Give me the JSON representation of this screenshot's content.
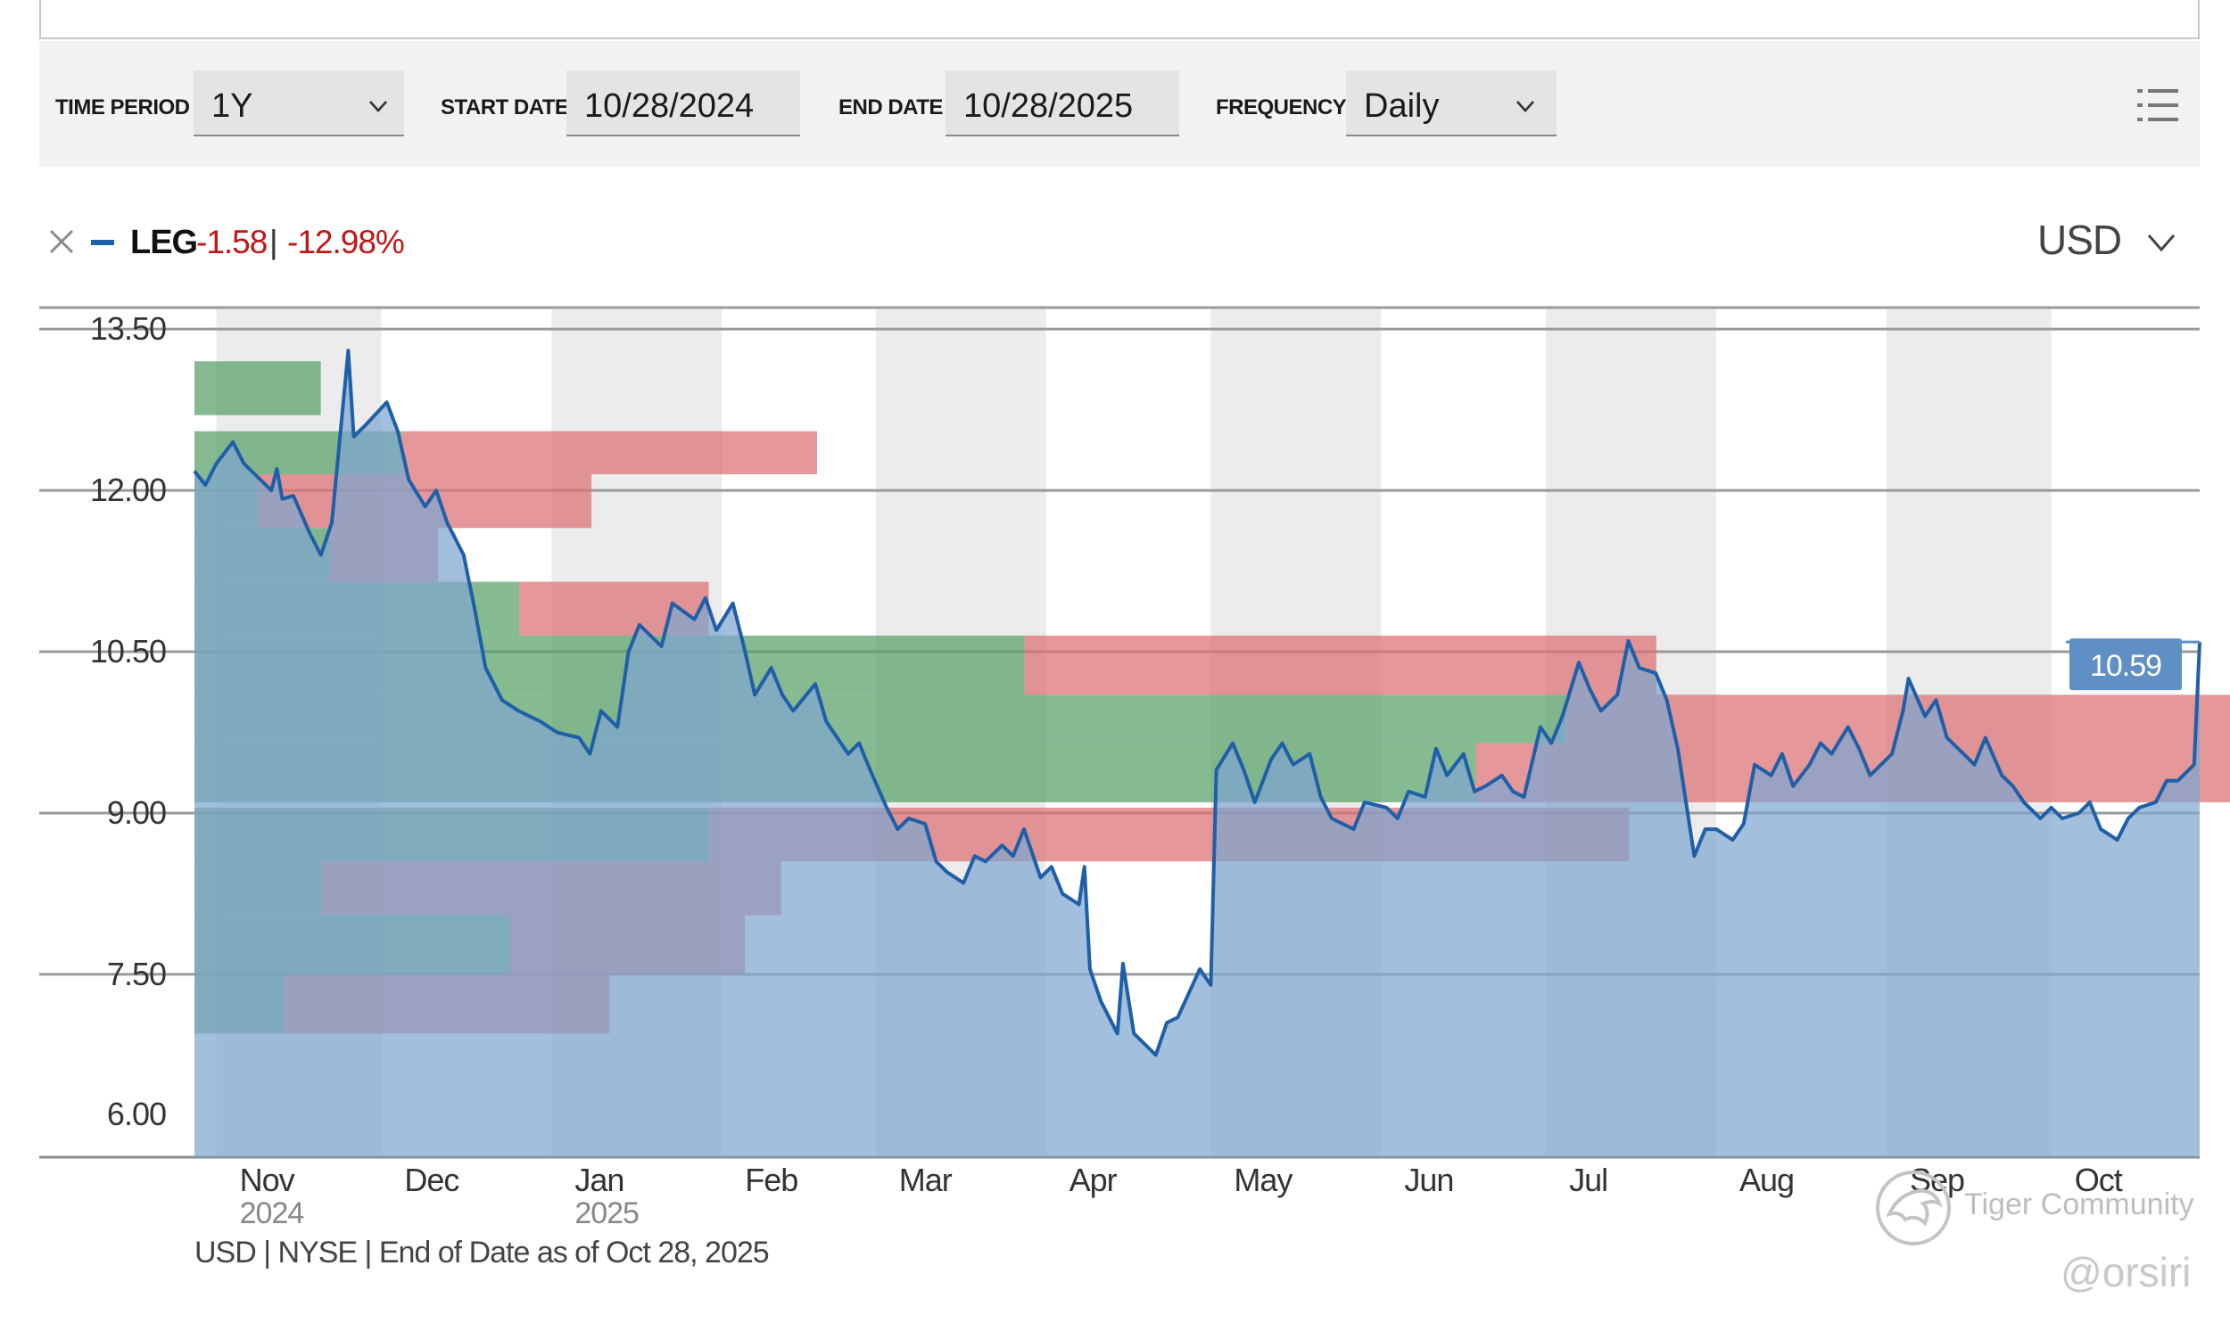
{
  "controls": {
    "time_period_label": "TIME PERIOD",
    "time_period_value": "1Y",
    "start_date_label": "START DATE",
    "start_date_value": "10/28/2024",
    "end_date_label": "END DATE",
    "end_date_value": "10/28/2025",
    "frequency_label": "FREQUENCY",
    "frequency_value": "Daily"
  },
  "legend": {
    "ticker": "LEG",
    "change_abs": "-1.58",
    "separator": "|",
    "change_pct": "-12.98%",
    "currency": "USD"
  },
  "footer": {
    "note": "USD | NYSE | End of Date as of Oct 28, 2025"
  },
  "watermark": {
    "text": "Tiger Community",
    "handle": "@orsiri"
  },
  "colors": {
    "line": "#1f5fa8",
    "area": "#7ea6d0",
    "volume_up": "#57a067",
    "volume_down": "#db6f72",
    "band": "#ececec",
    "negative_text": "#c0161a",
    "last_price_badge": "#5f8fc4"
  },
  "icons": [
    "close-icon",
    "chevron-down-icon",
    "list-view-icon"
  ],
  "chart_data": {
    "type": "area",
    "series": [
      {
        "name": "LEG"
      }
    ],
    "yticks": [
      "13.50",
      "12.00",
      "10.50",
      "9.00",
      "7.50",
      "6.00"
    ],
    "ylim": [
      5.8,
      13.7
    ],
    "grid": true,
    "months": [
      {
        "label": "Nov",
        "year": "2024"
      },
      {
        "label": "Dec",
        "year": ""
      },
      {
        "label": "Jan",
        "year": "2025"
      },
      {
        "label": "Feb",
        "year": ""
      },
      {
        "label": "Mar",
        "year": ""
      },
      {
        "label": "Apr",
        "year": ""
      },
      {
        "label": "May",
        "year": ""
      },
      {
        "label": "Jun",
        "year": ""
      },
      {
        "label": "Jul",
        "year": ""
      },
      {
        "label": "Aug",
        "year": ""
      },
      {
        "label": "Sep",
        "year": ""
      },
      {
        "label": "Oct",
        "year": ""
      }
    ],
    "last_price": "10.59",
    "points": [
      [
        "2024-10-28",
        12.18
      ],
      [
        "2024-10-30",
        12.05
      ],
      [
        "2024-11-01",
        12.25
      ],
      [
        "2024-11-04",
        12.45
      ],
      [
        "2024-11-06",
        12.25
      ],
      [
        "2024-11-08",
        12.15
      ],
      [
        "2024-11-11",
        12.0
      ],
      [
        "2024-11-12",
        12.2
      ],
      [
        "2024-11-13",
        11.92
      ],
      [
        "2024-11-15",
        11.95
      ],
      [
        "2024-11-18",
        11.6
      ],
      [
        "2024-11-20",
        11.4
      ],
      [
        "2024-11-22",
        11.7
      ],
      [
        "2024-11-25",
        13.3
      ],
      [
        "2024-11-26",
        12.5
      ],
      [
        "2024-11-28",
        12.6
      ],
      [
        "2024-12-02",
        12.82
      ],
      [
        "2024-12-04",
        12.55
      ],
      [
        "2024-12-06",
        12.1
      ],
      [
        "2024-12-09",
        11.85
      ],
      [
        "2024-12-11",
        12.0
      ],
      [
        "2024-12-13",
        11.7
      ],
      [
        "2024-12-16",
        11.4
      ],
      [
        "2024-12-18",
        10.9
      ],
      [
        "2024-12-20",
        10.35
      ],
      [
        "2024-12-23",
        10.05
      ],
      [
        "2024-12-26",
        9.95
      ],
      [
        "2024-12-30",
        9.85
      ],
      [
        "2025-01-02",
        9.75
      ],
      [
        "2025-01-06",
        9.7
      ],
      [
        "2025-01-08",
        9.55
      ],
      [
        "2025-01-10",
        9.95
      ],
      [
        "2025-01-13",
        9.8
      ],
      [
        "2025-01-15",
        10.5
      ],
      [
        "2025-01-17",
        10.75
      ],
      [
        "2025-01-21",
        10.55
      ],
      [
        "2025-01-23",
        10.95
      ],
      [
        "2025-01-27",
        10.8
      ],
      [
        "2025-01-29",
        11.0
      ],
      [
        "2025-01-31",
        10.7
      ],
      [
        "2025-02-03",
        10.95
      ],
      [
        "2025-02-05",
        10.55
      ],
      [
        "2025-02-07",
        10.1
      ],
      [
        "2025-02-10",
        10.35
      ],
      [
        "2025-02-12",
        10.1
      ],
      [
        "2025-02-14",
        9.95
      ],
      [
        "2025-02-18",
        10.2
      ],
      [
        "2025-02-20",
        9.85
      ],
      [
        "2025-02-24",
        9.55
      ],
      [
        "2025-02-26",
        9.65
      ],
      [
        "2025-02-28",
        9.4
      ],
      [
        "2025-03-03",
        9.05
      ],
      [
        "2025-03-05",
        8.85
      ],
      [
        "2025-03-07",
        8.95
      ],
      [
        "2025-03-10",
        8.9
      ],
      [
        "2025-03-12",
        8.55
      ],
      [
        "2025-03-14",
        8.45
      ],
      [
        "2025-03-17",
        8.35
      ],
      [
        "2025-03-19",
        8.6
      ],
      [
        "2025-03-21",
        8.55
      ],
      [
        "2025-03-24",
        8.7
      ],
      [
        "2025-03-26",
        8.6
      ],
      [
        "2025-03-28",
        8.85
      ],
      [
        "2025-03-31",
        8.4
      ],
      [
        "2025-04-02",
        8.5
      ],
      [
        "2025-04-04",
        8.25
      ],
      [
        "2025-04-07",
        8.15
      ],
      [
        "2025-04-08",
        8.5
      ],
      [
        "2025-04-09",
        7.55
      ],
      [
        "2025-04-11",
        7.25
      ],
      [
        "2025-04-14",
        6.95
      ],
      [
        "2025-04-15",
        7.6
      ],
      [
        "2025-04-17",
        6.95
      ],
      [
        "2025-04-21",
        6.75
      ],
      [
        "2025-04-23",
        7.05
      ],
      [
        "2025-04-25",
        7.1
      ],
      [
        "2025-04-29",
        7.55
      ],
      [
        "2025-05-01",
        7.4
      ],
      [
        "2025-05-02",
        9.4
      ],
      [
        "2025-05-05",
        9.65
      ],
      [
        "2025-05-07",
        9.4
      ],
      [
        "2025-05-09",
        9.1
      ],
      [
        "2025-05-12",
        9.5
      ],
      [
        "2025-05-14",
        9.65
      ],
      [
        "2025-05-16",
        9.45
      ],
      [
        "2025-05-19",
        9.55
      ],
      [
        "2025-05-21",
        9.15
      ],
      [
        "2025-05-23",
        8.95
      ],
      [
        "2025-05-27",
        8.85
      ],
      [
        "2025-05-29",
        9.1
      ],
      [
        "2025-06-02",
        9.05
      ],
      [
        "2025-06-04",
        8.95
      ],
      [
        "2025-06-06",
        9.2
      ],
      [
        "2025-06-09",
        9.15
      ],
      [
        "2025-06-11",
        9.6
      ],
      [
        "2025-06-13",
        9.35
      ],
      [
        "2025-06-16",
        9.55
      ],
      [
        "2025-06-18",
        9.2
      ],
      [
        "2025-06-20",
        9.25
      ],
      [
        "2025-06-23",
        9.35
      ],
      [
        "2025-06-25",
        9.2
      ],
      [
        "2025-06-27",
        9.15
      ],
      [
        "2025-06-30",
        9.8
      ],
      [
        "2025-07-02",
        9.65
      ],
      [
        "2025-07-04",
        9.9
      ],
      [
        "2025-07-07",
        10.4
      ],
      [
        "2025-07-09",
        10.15
      ],
      [
        "2025-07-11",
        9.95
      ],
      [
        "2025-07-14",
        10.1
      ],
      [
        "2025-07-16",
        10.6
      ],
      [
        "2025-07-18",
        10.35
      ],
      [
        "2025-07-21",
        10.3
      ],
      [
        "2025-07-23",
        10.05
      ],
      [
        "2025-07-25",
        9.6
      ],
      [
        "2025-07-28",
        8.6
      ],
      [
        "2025-07-30",
        8.85
      ],
      [
        "2025-08-01",
        8.85
      ],
      [
        "2025-08-04",
        8.75
      ],
      [
        "2025-08-06",
        8.9
      ],
      [
        "2025-08-08",
        9.45
      ],
      [
        "2025-08-11",
        9.35
      ],
      [
        "2025-08-13",
        9.55
      ],
      [
        "2025-08-15",
        9.25
      ],
      [
        "2025-08-18",
        9.45
      ],
      [
        "2025-08-20",
        9.65
      ],
      [
        "2025-08-22",
        9.55
      ],
      [
        "2025-08-25",
        9.8
      ],
      [
        "2025-08-27",
        9.6
      ],
      [
        "2025-08-29",
        9.35
      ],
      [
        "2025-09-02",
        9.55
      ],
      [
        "2025-09-04",
        9.95
      ],
      [
        "2025-09-05",
        10.25
      ],
      [
        "2025-09-08",
        9.9
      ],
      [
        "2025-09-10",
        10.05
      ],
      [
        "2025-09-12",
        9.7
      ],
      [
        "2025-09-15",
        9.55
      ],
      [
        "2025-09-17",
        9.45
      ],
      [
        "2025-09-19",
        9.7
      ],
      [
        "2025-09-22",
        9.35
      ],
      [
        "2025-09-24",
        9.25
      ],
      [
        "2025-09-26",
        9.1
      ],
      [
        "2025-09-29",
        8.95
      ],
      [
        "2025-10-01",
        9.05
      ],
      [
        "2025-10-03",
        8.95
      ],
      [
        "2025-10-06",
        9.0
      ],
      [
        "2025-10-08",
        9.1
      ],
      [
        "2025-10-10",
        8.85
      ],
      [
        "2025-10-13",
        8.75
      ],
      [
        "2025-10-15",
        8.95
      ],
      [
        "2025-10-17",
        9.05
      ],
      [
        "2025-10-20",
        9.1
      ],
      [
        "2025-10-22",
        9.3
      ],
      [
        "2025-10-24",
        9.3
      ],
      [
        "2025-10-27",
        9.45
      ],
      [
        "2025-10-28",
        10.59
      ]
    ],
    "volume_by_price": [
      {
        "low": 12.7,
        "high": 13.2,
        "up": 0.14,
        "down": 0.0
      },
      {
        "low": 12.15,
        "high": 12.55,
        "up": 0.23,
        "down": 0.46
      },
      {
        "low": 11.65,
        "high": 12.15,
        "up": 0.07,
        "down": 0.37
      },
      {
        "low": 11.15,
        "high": 11.65,
        "up": 0.15,
        "down": 0.12
      },
      {
        "low": 10.65,
        "high": 11.15,
        "up": 0.36,
        "down": 0.21
      },
      {
        "low": 10.1,
        "high": 10.65,
        "up": 0.92,
        "down": 0.7
      },
      {
        "low": 9.65,
        "high": 10.1,
        "up": 1.52,
        "down": 1.55
      },
      {
        "low": 9.1,
        "high": 9.65,
        "up": 1.42,
        "down": 1.05
      },
      {
        "low": 8.55,
        "high": 9.05,
        "up": 0.57,
        "down": 1.02
      },
      {
        "low": 8.05,
        "high": 8.55,
        "up": 0.14,
        "down": 0.51
      },
      {
        "low": 7.5,
        "high": 8.05,
        "up": 0.35,
        "down": 0.26
      },
      {
        "low": 6.95,
        "high": 7.5,
        "up": 0.1,
        "down": 0.36
      }
    ]
  }
}
